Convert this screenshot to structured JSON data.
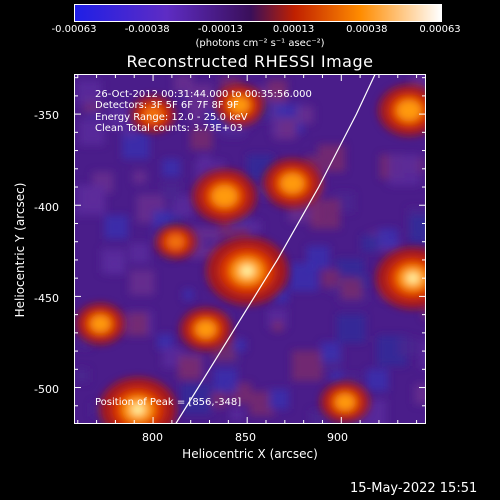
{
  "colorbar": {
    "ticks": [
      "-0.00063",
      "-0.00038",
      "-0.00013",
      "0.00013",
      "0.00038",
      "0.00063"
    ],
    "unit_label": "(photons cm⁻² s⁻¹ asec⁻²)",
    "colors": {
      "negative_end": "#1f1fe6",
      "negative_mid": "#5e2cc4",
      "center": "#3a0f5a",
      "positive_low": "#c02000",
      "positive_mid": "#ff8c00",
      "positive_high": "#ffffff"
    }
  },
  "plot": {
    "title": "Reconstructed RHESSI Image",
    "info_lines": [
      "26-Oct-2012 00:31:44.000 to 00:35:56.000",
      "Detectors: 3F 5F 6F 7F 8F 9F",
      "Energy Range: 12.0 - 25.0 keV",
      "Clean     Total counts: 3.73E+03"
    ],
    "peak_text": "Position of Peak = [856,-348]",
    "x_axis": {
      "label": "Heliocentric X (arcsec)",
      "ticks": [
        "800",
        "850",
        "900"
      ]
    },
    "y_axis": {
      "label": "Heliocentric Y (arcsec)",
      "ticks": [
        "-350",
        "-400",
        "-450",
        "-500"
      ]
    },
    "limb_color": "#ffffff"
  },
  "timestamp": "15-May-2022 15:51",
  "chart_data": {
    "type": "heatmap",
    "title": "Reconstructed RHESSI Image",
    "xlabel": "Heliocentric X (arcsec)",
    "ylabel": "Heliocentric Y (arcsec)",
    "xlim": [
      758,
      945
    ],
    "ylim": [
      -520,
      -328
    ],
    "colorbar_range": [
      -0.00063,
      0.00063
    ],
    "peak": [
      856,
      -348
    ],
    "sources": [
      {
        "x": 850,
        "y": -436,
        "intensity": 0.00063
      },
      {
        "x": 838,
        "y": -395,
        "intensity": 0.00045
      },
      {
        "x": 874,
        "y": -388,
        "intensity": 0.0004
      },
      {
        "x": 792,
        "y": -512,
        "intensity": 0.00058
      },
      {
        "x": 772,
        "y": -465,
        "intensity": 0.0003
      },
      {
        "x": 828,
        "y": -468,
        "intensity": 0.00032
      },
      {
        "x": 938,
        "y": -440,
        "intensity": 0.00055
      },
      {
        "x": 936,
        "y": -348,
        "intensity": 0.00042
      },
      {
        "x": 846,
        "y": -345,
        "intensity": 0.0003
      },
      {
        "x": 800,
        "y": -350,
        "intensity": 0.00025
      },
      {
        "x": 902,
        "y": -508,
        "intensity": 0.0003
      },
      {
        "x": 812,
        "y": -420,
        "intensity": 0.00022
      }
    ],
    "limb": [
      [
        812,
        -520
      ],
      [
        842,
        -470
      ],
      [
        866,
        -430
      ],
      [
        888,
        -390
      ],
      [
        908,
        -350
      ],
      [
        918,
        -328
      ]
    ]
  }
}
